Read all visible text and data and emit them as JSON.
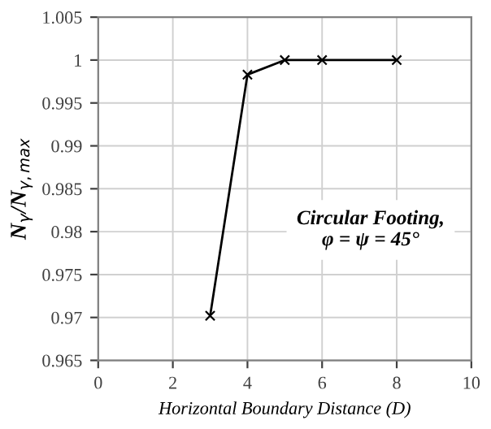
{
  "chart_data": {
    "type": "line",
    "xlabel": "Horizontal Boundary Distance (D)",
    "ylabel": "N$_{γ}$/N$_{γ,max}$",
    "x": [
      3,
      4,
      5,
      6,
      8
    ],
    "series": [
      {
        "color": "#000000",
        "values": [
          0.9702,
          0.9983,
          1.0,
          1.0,
          1.0
        ]
      }
    ],
    "xlim": [
      0,
      10
    ],
    "xticks": [
      0,
      2,
      4,
      6,
      8,
      10
    ],
    "ylim": [
      0.965,
      1.005
    ],
    "yticks": [
      0.965,
      0.97,
      0.975,
      0.98,
      0.985,
      0.99,
      0.995,
      {
        "value": 1.0,
        "label": "1"
      },
      1.005
    ],
    "grid": true,
    "marker": "cross",
    "line_style": "solid",
    "annotations": [
      "Circular Footing,\nφ = ψ = 45°"
    ]
  }
}
